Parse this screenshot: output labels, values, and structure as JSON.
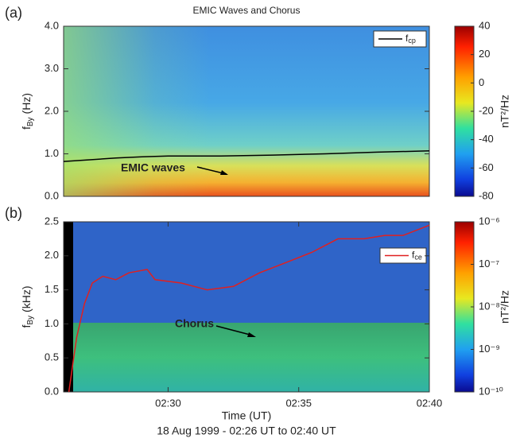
{
  "chart_data": [
    {
      "type": "spectrogram",
      "panel_label": "(a)",
      "title": "EMIC Waves and Chorus",
      "ylabel": {
        "symbol": "f",
        "subscript": "By",
        "unit": "(Hz)"
      },
      "ylim": [
        0,
        4
      ],
      "yticks": [
        {
          "value": 0,
          "label": "0.0"
        },
        {
          "value": 1,
          "label": "1.0"
        },
        {
          "value": 2,
          "label": "2.0"
        },
        {
          "value": 3,
          "label": "3.0"
        },
        {
          "value": 4,
          "label": "4.0"
        }
      ],
      "xlim": [
        "02:26",
        "02:40"
      ],
      "colorbar": {
        "label": "nT²/Hz",
        "lim": [
          -80,
          40
        ],
        "ticks": [
          40,
          20,
          0,
          -20,
          -40,
          -60,
          -80
        ],
        "log": false
      },
      "series": [
        {
          "name": "fcp",
          "color": "#000000",
          "x": [
            "02:26:00",
            "02:27:00",
            "02:28:00",
            "02:29:00",
            "02:30:00",
            "02:32:00",
            "02:34:00",
            "02:36:00",
            "02:38:00",
            "02:40:00"
          ],
          "values": [
            0.82,
            0.86,
            0.9,
            0.93,
            0.95,
            0.95,
            0.97,
            1.0,
            1.04,
            1.07
          ]
        }
      ],
      "annotation": "EMIC waves"
    },
    {
      "type": "spectrogram",
      "panel_label": "(b)",
      "ylabel": {
        "symbol": "f",
        "subscript": "By",
        "unit": "(kHz)"
      },
      "ylim": [
        0,
        2.5
      ],
      "yticks": [
        {
          "value": 0,
          "label": "0.0"
        },
        {
          "value": 0.5,
          "label": "0.5"
        },
        {
          "value": 1,
          "label": "1.0"
        },
        {
          "value": 1.5,
          "label": "1.5"
        },
        {
          "value": 2,
          "label": "2.0"
        },
        {
          "value": 2.5,
          "label": "2.5"
        }
      ],
      "xlim": [
        "02:26",
        "02:40"
      ],
      "xticks": [
        "02:30",
        "02:35",
        "02:40"
      ],
      "xlabel": "Time (UT)",
      "subtitle": "18 Aug 1999 - 02:26 UT to 02:40 UT",
      "colorbar": {
        "label": "nT²/Hz",
        "lim": [
          1e-10,
          1e-06
        ],
        "log": true,
        "ticks": [
          {
            "value": 1e-06,
            "label": "10⁻⁶"
          },
          {
            "value": 1e-07,
            "label": "10⁻⁷"
          },
          {
            "value": 1e-08,
            "label": "10⁻⁸"
          },
          {
            "value": 1e-09,
            "label": "10⁻⁹"
          },
          {
            "value": 1e-10,
            "label": "10⁻¹⁰"
          }
        ]
      },
      "series": [
        {
          "name": "fce",
          "color": "#e02020",
          "x": [
            "02:26:12",
            "02:26:30",
            "02:26:48",
            "02:27:06",
            "02:27:30",
            "02:28:00",
            "02:28:30",
            "02:29:12",
            "02:29:30",
            "02:30:30",
            "02:31:30",
            "02:32:30",
            "02:33:30",
            "02:34:30",
            "02:35:30",
            "02:36:30",
            "02:37:30",
            "02:38:18",
            "02:39:00",
            "02:40:00"
          ],
          "values": [
            0,
            0.8,
            1.3,
            1.6,
            1.7,
            1.65,
            1.75,
            1.8,
            1.65,
            1.6,
            1.5,
            1.55,
            1.75,
            1.9,
            2.05,
            2.25,
            2.25,
            2.3,
            2.3,
            2.45
          ]
        }
      ],
      "annotation": "Chorus"
    }
  ]
}
